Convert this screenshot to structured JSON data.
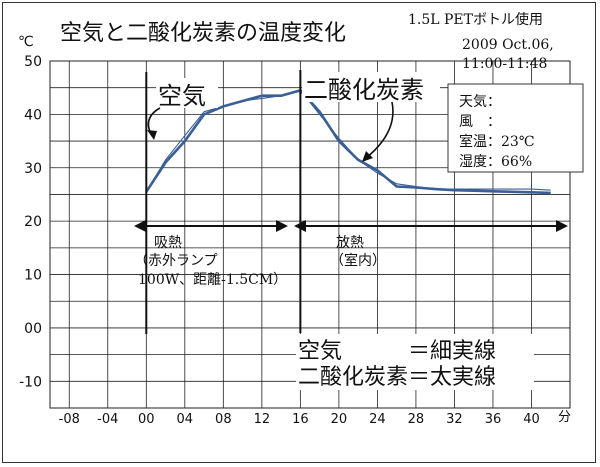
{
  "chart_data": {
    "type": "line",
    "title": "空気と二酸化炭素の温度変化",
    "subtitle_lines": [
      "1.5L PETボトル使用",
      "2009 Oct.06,",
      "11:00-11:48"
    ],
    "ylabel": "℃",
    "xlabel": "分",
    "xlim": [
      -10,
      44
    ],
    "ylim": [
      -15,
      50
    ],
    "x_ticks": [
      -8,
      -4,
      0,
      4,
      8,
      12,
      16,
      20,
      24,
      28,
      32,
      36,
      40
    ],
    "x_tick_labels": [
      "-08",
      "-04",
      "00",
      "04",
      "08",
      "12",
      "16",
      "20",
      "24",
      "28",
      "32",
      "36",
      "40"
    ],
    "y_ticks": [
      -10,
      0,
      10,
      20,
      30,
      40,
      50
    ],
    "y_tick_labels": [
      "-10",
      "00",
      "10",
      "20",
      "30",
      "40",
      "50"
    ],
    "grid": true,
    "series": [
      {
        "name": "空気",
        "style": "thin",
        "x": [
          0,
          2,
          4,
          6,
          8,
          10,
          12,
          14,
          16,
          18,
          20,
          22,
          24,
          26,
          28,
          30,
          32,
          34,
          36,
          38,
          40,
          42
        ],
        "y": [
          25.5,
          31.5,
          36,
          40.5,
          41.5,
          42.5,
          43,
          43.5,
          44.5,
          40,
          35.5,
          31.5,
          29,
          27,
          26.5,
          26,
          26,
          26,
          26,
          26,
          26,
          25.8
        ]
      },
      {
        "name": "二酸化炭素",
        "style": "thick",
        "x": [
          0,
          2,
          4,
          6,
          8,
          10,
          12,
          14,
          16,
          18,
          20,
          22,
          24,
          26,
          28,
          30,
          32,
          34,
          36,
          38,
          40,
          42
        ],
        "y": [
          25.5,
          31,
          35,
          40,
          41.5,
          42.5,
          43.5,
          43.5,
          44.5,
          40.5,
          35,
          31.5,
          29.5,
          26.5,
          26.3,
          26,
          25.8,
          25.7,
          25.6,
          25.5,
          25.4,
          25.3
        ]
      }
    ],
    "vlines": [
      0,
      16
    ],
    "weather": {
      "line1": "天気：",
      "line2": "風　：",
      "line3": "室温：23℃",
      "line4": "湿度：66%"
    },
    "annotations": {
      "air_label": "空気",
      "co2_label": "二酸化炭素",
      "absorb_1": "吸熱",
      "absorb_2": "（赤外ランプ",
      "absorb_3": "100W、距離-1.5CM）",
      "release_1": "放熱",
      "release_2": "（室内）",
      "legend_1": "空気　　　＝細実線",
      "legend_2": "二酸化炭素＝太実線"
    },
    "colors": {
      "line": "#3a5f96",
      "grid": "#222222",
      "text": "#111111"
    }
  }
}
